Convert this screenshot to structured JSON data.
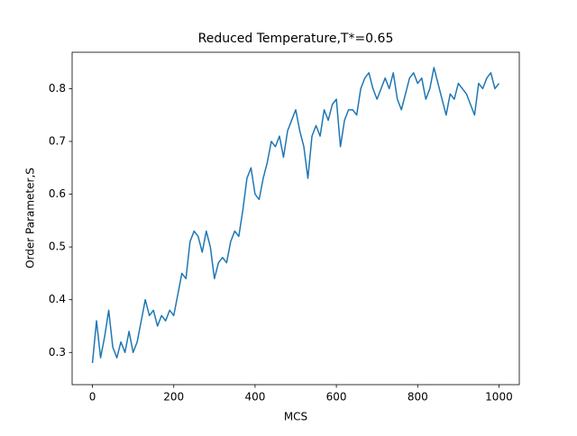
{
  "chart_data": {
    "type": "line",
    "title": "Reduced Temperature,T*=0.65",
    "x_label": "MCS",
    "y_label": "Order Parameter,S",
    "x": [
      0,
      10,
      20,
      30,
      40,
      50,
      60,
      70,
      80,
      90,
      100,
      110,
      120,
      130,
      140,
      150,
      160,
      170,
      180,
      190,
      200,
      210,
      220,
      230,
      240,
      250,
      260,
      270,
      280,
      290,
      300,
      310,
      320,
      330,
      340,
      350,
      360,
      370,
      380,
      390,
      400,
      410,
      420,
      430,
      440,
      450,
      460,
      470,
      480,
      490,
      500,
      510,
      520,
      530,
      540,
      550,
      560,
      570,
      580,
      590,
      600,
      610,
      620,
      630,
      640,
      650,
      660,
      670,
      680,
      690,
      700,
      710,
      720,
      730,
      740,
      750,
      760,
      770,
      780,
      790,
      800,
      810,
      820,
      830,
      840,
      850,
      860,
      870,
      880,
      890,
      900,
      910,
      920,
      930,
      940,
      950,
      960,
      970,
      980,
      990,
      1000
    ],
    "series": [
      {
        "name": "S",
        "color": "#1f77b4",
        "values": [
          0.28,
          0.36,
          0.29,
          0.33,
          0.38,
          0.31,
          0.29,
          0.32,
          0.3,
          0.34,
          0.3,
          0.32,
          0.36,
          0.4,
          0.37,
          0.38,
          0.35,
          0.37,
          0.36,
          0.38,
          0.37,
          0.41,
          0.45,
          0.44,
          0.51,
          0.53,
          0.52,
          0.49,
          0.53,
          0.5,
          0.44,
          0.47,
          0.48,
          0.47,
          0.51,
          0.53,
          0.52,
          0.57,
          0.63,
          0.65,
          0.6,
          0.59,
          0.63,
          0.66,
          0.7,
          0.69,
          0.71,
          0.67,
          0.72,
          0.74,
          0.76,
          0.72,
          0.69,
          0.63,
          0.71,
          0.73,
          0.71,
          0.76,
          0.74,
          0.77,
          0.78,
          0.69,
          0.74,
          0.76,
          0.76,
          0.75,
          0.8,
          0.82,
          0.83,
          0.8,
          0.78,
          0.8,
          0.82,
          0.8,
          0.83,
          0.78,
          0.76,
          0.79,
          0.82,
          0.83,
          0.81,
          0.82,
          0.78,
          0.8,
          0.84,
          0.81,
          0.78,
          0.75,
          0.79,
          0.78,
          0.81,
          0.8,
          0.79,
          0.77,
          0.75,
          0.81,
          0.8,
          0.82,
          0.83,
          0.8,
          0.81
        ]
      }
    ],
    "xlim": [
      -50,
      1050
    ],
    "ylim": [
      0.239,
      0.869
    ],
    "xticks": [
      0,
      200,
      400,
      600,
      800,
      1000
    ],
    "yticks": [
      0.3,
      0.4,
      0.5,
      0.6,
      0.7,
      0.8
    ],
    "grid": false
  }
}
